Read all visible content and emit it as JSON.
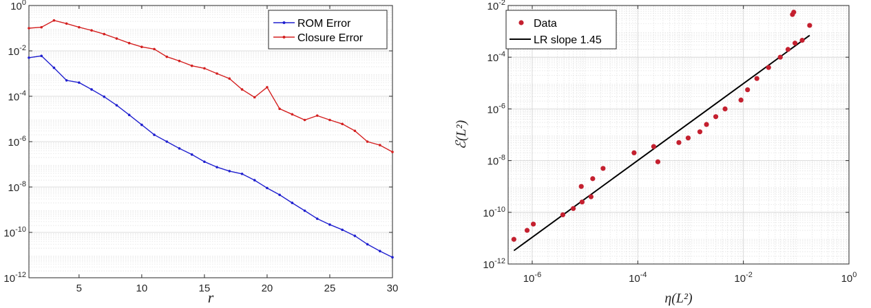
{
  "chart_data": [
    {
      "type": "line",
      "xlabel": "r",
      "ylabel": "",
      "xlim": [
        1,
        30
      ],
      "ylim": [
        1e-12,
        1
      ],
      "yscale": "log",
      "xticks": [
        5,
        10,
        15,
        20,
        25,
        30
      ],
      "yticks": [
        {
          "value": 1e-12,
          "base": "10",
          "exp": "-12"
        },
        {
          "value": 1e-10,
          "base": "10",
          "exp": "-10"
        },
        {
          "value": 1e-08,
          "base": "10",
          "exp": "-8"
        },
        {
          "value": 1e-06,
          "base": "10",
          "exp": "-6"
        },
        {
          "value": 0.0001,
          "base": "10",
          "exp": "-4"
        },
        {
          "value": 0.01,
          "base": "10",
          "exp": "-2"
        },
        {
          "value": 1,
          "base": "10",
          "exp": "0"
        }
      ],
      "grid": "minor-y",
      "legend_position": "top-right",
      "x": [
        1,
        2,
        3,
        4,
        5,
        6,
        7,
        8,
        9,
        10,
        11,
        12,
        13,
        14,
        15,
        16,
        17,
        18,
        19,
        20,
        21,
        22,
        23,
        24,
        25,
        26,
        27,
        28,
        29,
        30
      ],
      "series": [
        {
          "name": "ROM Error",
          "color": "#1f1fcf",
          "values": [
            0.005,
            0.006,
            0.0018,
            0.0005,
            0.0004,
            0.0002,
            9.5e-05,
            4e-05,
            1.5e-05,
            5.5e-06,
            2e-06,
            1e-06,
            5e-07,
            2.7e-07,
            1.3e-07,
            7.5e-08,
            5e-08,
            3.8e-08,
            2e-08,
            9e-09,
            4.5e-09,
            2e-09,
            9e-10,
            4e-10,
            2.2e-10,
            1.3e-10,
            7e-11,
            3e-11,
            1.5e-11,
            8e-12
          ]
        },
        {
          "name": "Closure Error",
          "color": "#d42020",
          "values": [
            0.1,
            0.11,
            0.22,
            0.16,
            0.11,
            0.08,
            0.055,
            0.035,
            0.022,
            0.015,
            0.012,
            0.0055,
            0.0036,
            0.0022,
            0.0017,
            0.001,
            0.0006,
            0.0002,
            9e-05,
            0.00025,
            2.8e-05,
            1.6e-05,
            9e-06,
            1.4e-05,
            9e-06,
            6e-06,
            3e-06,
            1e-06,
            7e-07,
            3.5e-07
          ]
        }
      ]
    },
    {
      "type": "scatter",
      "xlabel": "η(L²)",
      "ylabel": "ℰ(L²)",
      "xscale": "log",
      "yscale": "log",
      "xlim": [
        3.5e-07,
        1
      ],
      "ylim": [
        1e-12,
        0.01
      ],
      "xticks": [
        {
          "value": 1e-06,
          "base": "10",
          "exp": "-6"
        },
        {
          "value": 0.0001,
          "base": "10",
          "exp": "-4"
        },
        {
          "value": 0.01,
          "base": "10",
          "exp": "-2"
        },
        {
          "value": 1,
          "base": "10",
          "exp": "0"
        }
      ],
      "yticks": [
        {
          "value": 1e-12,
          "base": "10",
          "exp": "-12"
        },
        {
          "value": 1e-10,
          "base": "10",
          "exp": "-10"
        },
        {
          "value": 1e-08,
          "base": "10",
          "exp": "-8"
        },
        {
          "value": 1e-06,
          "base": "10",
          "exp": "-6"
        },
        {
          "value": 0.0001,
          "base": "10",
          "exp": "-4"
        },
        {
          "value": 0.01,
          "base": "10",
          "exp": "-2"
        }
      ],
      "grid": "minor-xy",
      "legend_position": "top-left",
      "points": {
        "name": "Data",
        "color": "#c4202f",
        "x": [
          4.5e-07,
          8e-07,
          1.05e-06,
          3.8e-06,
          6e-06,
          8.5e-06,
          8.8e-06,
          1.3e-05,
          1.4e-05,
          2.2e-05,
          8.5e-05,
          0.0002,
          0.00024,
          0.0006,
          0.0009,
          0.0015,
          0.002,
          0.003,
          0.0045,
          0.009,
          0.012,
          0.018,
          0.03,
          0.05,
          0.07,
          0.085,
          0.09,
          0.095,
          0.13,
          0.18
        ],
        "y": [
          9e-12,
          2e-11,
          3.5e-11,
          8e-11,
          1.4e-10,
          1e-09,
          2.5e-10,
          4e-10,
          2e-09,
          5e-09,
          2e-08,
          3.5e-08,
          9e-09,
          5e-08,
          7.5e-08,
          1.3e-07,
          2.5e-07,
          5e-07,
          1e-06,
          2.2e-06,
          5.5e-06,
          1.5e-05,
          4e-05,
          0.0001,
          0.0002,
          0.0045,
          0.0055,
          0.00035,
          0.00045,
          0.0017
        ]
      },
      "fit_line": {
        "name": "LR slope 1.45",
        "color": "#000000",
        "x": [
          4.5e-07,
          0.18
        ],
        "y": [
          3.3e-12,
          0.0007
        ]
      }
    }
  ]
}
